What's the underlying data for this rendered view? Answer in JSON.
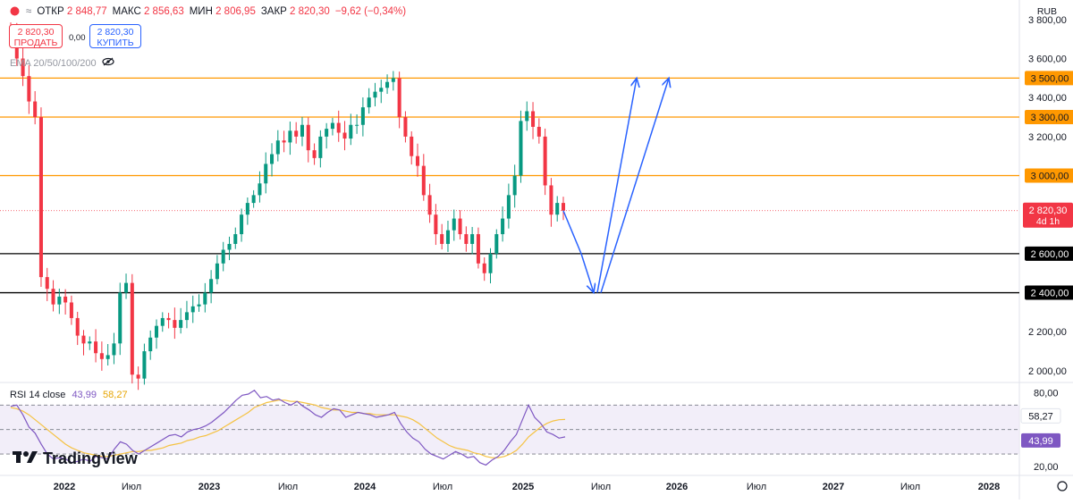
{
  "header": {
    "open_label": "ОТКР",
    "open_value": "2 848,77",
    "high_label": "МАКС",
    "high_value": "2 856,63",
    "low_label": "МИН",
    "low_value": "2 806,95",
    "close_label": "ЗАКР",
    "close_value": "2 820,30",
    "change_value": "−9,62 (−0,34%)",
    "sell_price": "2 820,30",
    "sell_label": "ПРОДАТЬ",
    "buy_price": "2 820,30",
    "buy_label": "КУПИТЬ",
    "spread": "0,00",
    "ema_label": "EMA 20/50/100/200",
    "currency": "RUB"
  },
  "rsi_header": {
    "label": "RSI 14 close",
    "value1": "43,99",
    "value2": "58,27"
  },
  "brand": "TradingView",
  "colors": {
    "up": "#089981",
    "down": "#f23645",
    "resistance": "#ff9800",
    "support": "#000000",
    "arrow": "#2962ff",
    "rsi": "#7e57c2",
    "rsi_ma": "#f5c242",
    "band": "#ede7f6"
  },
  "chart_data": [
    {
      "type": "candlestick",
      "symbol_currency": "RUB",
      "y_ticks": [
        "3 800,00",
        "3 600,00",
        "3 400,00",
        "3 200,00",
        "2 200,00",
        "2 000,00"
      ],
      "y_ticks_values": [
        3800,
        3600,
        3400,
        3200,
        2200,
        2000
      ],
      "x_ticks": [
        "2022",
        "Июл",
        "2023",
        "Июл",
        "2024",
        "Июл",
        "2025",
        "Июл",
        "2026",
        "Июл",
        "2027",
        "Июл",
        "2028"
      ],
      "ylim": [
        1940,
        3900
      ],
      "levels": [
        {
          "label": "3 500,00",
          "value": 3500,
          "kind": "resistance"
        },
        {
          "label": "3 300,00",
          "value": 3300,
          "kind": "resistance"
        },
        {
          "label": "3 000,00",
          "value": 3000,
          "kind": "resistance"
        },
        {
          "label": "2 600,00",
          "value": 2600,
          "kind": "support"
        },
        {
          "label": "2 400,00",
          "value": 2400,
          "kind": "support"
        }
      ],
      "last_price": {
        "label": "2 820,30",
        "sub": "4d 1h",
        "value": 2820.3
      },
      "closes": [
        3720,
        3600,
        3510,
        3380,
        3300,
        2480,
        2420,
        2340,
        2380,
        2350,
        2270,
        2180,
        2140,
        2150,
        2090,
        2060,
        2080,
        2140,
        2400,
        2450,
        1980,
        1960,
        2100,
        2170,
        2230,
        2270,
        2260,
        2220,
        2260,
        2300,
        2330,
        2340,
        2400,
        2470,
        2550,
        2620,
        2650,
        2700,
        2800,
        2860,
        2900,
        2960,
        3060,
        3110,
        3180,
        3170,
        3230,
        3200,
        3260,
        3130,
        3090,
        3200,
        3240,
        3270,
        3220,
        3190,
        3260,
        3260,
        3350,
        3400,
        3430,
        3450,
        3480,
        3500,
        3300,
        3200,
        3100,
        3050,
        2900,
        2800,
        2700,
        2650,
        2720,
        2780,
        2700,
        2650,
        2700,
        2550,
        2500,
        2600,
        2700,
        2780,
        2900,
        3000,
        3280,
        3330,
        3250,
        3200,
        2950,
        2800,
        2860,
        2820.3
      ],
      "plan_arrows_prices": [
        [
          2820.3,
          2600
        ],
        [
          2600,
          2400
        ],
        [
          2400,
          3500
        ],
        [
          2400,
          3500
        ]
      ]
    },
    {
      "type": "line",
      "title": "RSI 14 close",
      "y_ticks": [
        "80,00",
        "20,00"
      ],
      "y_ticks_values": [
        80,
        20
      ],
      "ylim": [
        14,
        87
      ],
      "band": [
        30,
        70
      ],
      "series": [
        {
          "name": "RSI",
          "last": "43,99",
          "values": [
            69,
            70,
            62,
            52,
            47,
            38,
            30,
            26,
            27,
            26,
            23,
            24,
            26,
            24,
            28,
            27,
            26,
            34,
            40,
            38,
            33,
            30,
            33,
            36,
            39,
            42,
            45,
            46,
            44,
            48,
            50,
            51,
            53,
            56,
            60,
            64,
            69,
            74,
            78,
            79,
            82,
            76,
            77,
            74,
            75,
            72,
            70,
            73,
            69,
            66,
            62,
            60,
            64,
            67,
            66,
            60,
            62,
            64,
            63,
            62,
            60,
            61,
            62,
            64,
            55,
            48,
            43,
            40,
            34,
            30,
            28,
            26,
            29,
            32,
            30,
            27,
            28,
            23,
            21,
            25,
            28,
            33,
            40,
            46,
            58,
            70,
            60,
            55,
            48,
            46,
            43,
            43.99
          ]
        },
        {
          "name": "RSI MA",
          "last": "58,27",
          "values": [
            68,
            67,
            65,
            62,
            58,
            54,
            50,
            46,
            42,
            38,
            35,
            33,
            31,
            30,
            29,
            28,
            28,
            29,
            30,
            31,
            32,
            32,
            33,
            33,
            34,
            35,
            37,
            38,
            39,
            41,
            42,
            44,
            45,
            47,
            49,
            52,
            55,
            58,
            61,
            64,
            68,
            70,
            72,
            73,
            74,
            74,
            73,
            73,
            72,
            71,
            70,
            68,
            67,
            66,
            66,
            65,
            64,
            64,
            63,
            63,
            62,
            62,
            62,
            62,
            61,
            60,
            58,
            55,
            51,
            47,
            43,
            40,
            37,
            35,
            34,
            33,
            31,
            30,
            28,
            27,
            27,
            28,
            30,
            33,
            38,
            44,
            48,
            52,
            55,
            57,
            58,
            58.27
          ]
        }
      ]
    }
  ]
}
